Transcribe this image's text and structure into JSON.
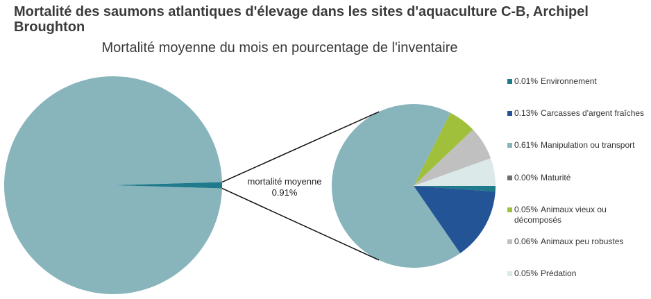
{
  "chart_data": {
    "type": "pie",
    "title": "Mortalité des saumons atlantiques d'élevage dans les sites d'aquaculture C-B, Archipel Broughton",
    "subtitle": "Mortalité moyenne du mois en pourcentage de l'inventaire",
    "main": {
      "categories": [
        null,
        "mortalité moyenne"
      ],
      "values": [
        99.09,
        0.91
      ],
      "value_labels": [
        null,
        "0.91%"
      ],
      "colors": [
        "#88b4bc",
        "#1f7a8c"
      ]
    },
    "detail": {
      "categories": [
        "Environnement",
        "Carcasses d'argent fraîches",
        "Manipulation ou transport",
        "Maturité",
        "Animaux vieux ou décomposés",
        "Animaux peu robustes",
        "Prédation"
      ],
      "values": [
        0.01,
        0.13,
        0.61,
        0.0,
        0.05,
        0.06,
        0.05
      ],
      "value_labels": [
        "0.01%",
        "0.13%",
        "0.61%",
        "0.00%",
        "0.05%",
        "0.06%",
        "0.05%"
      ],
      "colors": [
        "#1f7a8c",
        "#235495",
        "#88b4bc",
        "#6f6f6f",
        "#a0c03c",
        "#c0c0c0",
        "#dbe9e9"
      ]
    }
  }
}
